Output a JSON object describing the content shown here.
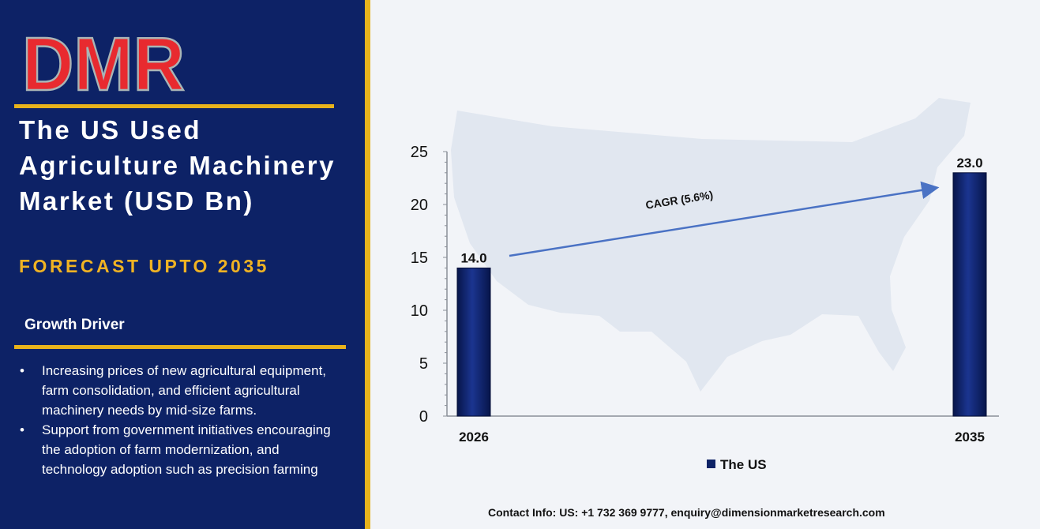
{
  "brand": {
    "logo_text": "DMR",
    "colors": {
      "red": "#e82a2f",
      "grey": "#a9b5b6"
    }
  },
  "report": {
    "title": "The US Used Agriculture Machinery Market (USD Bn)",
    "subtitle": "FORECAST UPTO 2035"
  },
  "growth_driver": {
    "label": "Growth Driver",
    "items": [
      "Increasing prices of new agricultural equipment, farm consolidation, and efficient agricultural machinery needs by mid-size farms.",
      "Support from government initiatives encouraging the adoption of farm modernization, and technology adoption such as precision farming"
    ]
  },
  "chart_data": {
    "type": "bar",
    "categories": [
      "2026",
      "2035"
    ],
    "series": [
      {
        "name": "The US",
        "values": [
          14.0,
          23.0
        ],
        "color": "#0d2266"
      }
    ],
    "data_labels": [
      "14.0",
      "23.0"
    ],
    "ylim": [
      0,
      25
    ],
    "yticks": [
      0,
      5,
      10,
      15,
      20,
      25
    ],
    "annotation": {
      "text": "CAGR (5.6%)"
    },
    "legend_position": "bottom-center",
    "grid": false,
    "background_map": "us-map"
  },
  "contact": {
    "text": "Contact Info: US: +1 732 369 9777, enquiry@dimensionmarketresearch.com"
  },
  "colors": {
    "navy": "#0d2266",
    "gold": "#e8b31c",
    "subtitle_gold": "#f0b323",
    "arrow": "#4a72c4"
  }
}
